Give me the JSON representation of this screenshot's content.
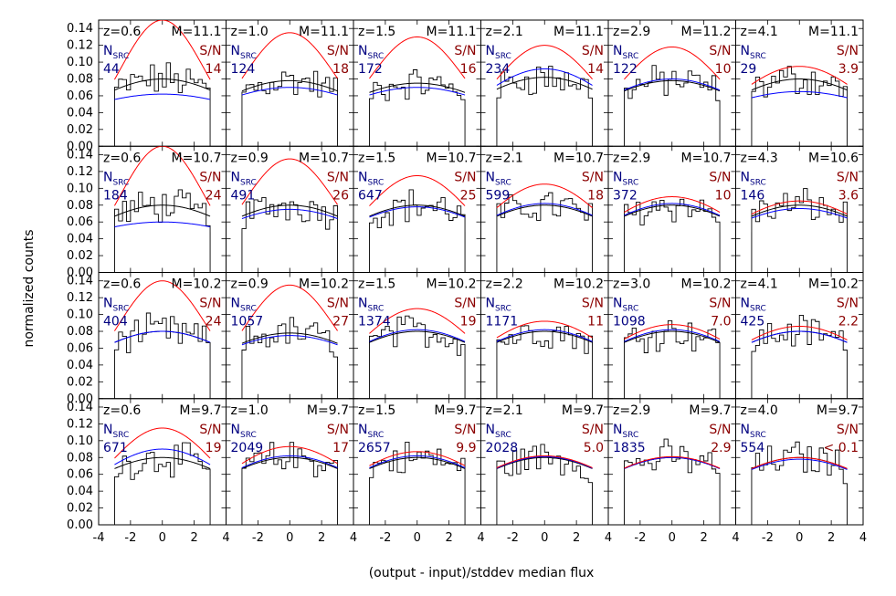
{
  "figure": {
    "xlabel": "(output - input)/stddev median flux",
    "ylabel": "normalized counts",
    "nsrc_label": "N",
    "nsrc_sub": "SRC",
    "sn_label": "S/N"
  },
  "chart_data": {
    "type": "histogram-grid",
    "rows": 4,
    "cols": 6,
    "xlim": [
      -4,
      4
    ],
    "ylim": [
      0,
      0.15
    ],
    "x_ticks": [
      -4,
      -2,
      0,
      2,
      4
    ],
    "x_tick_labels": [
      "-4",
      "-2",
      "0",
      "2",
      "4"
    ],
    "y_ticks": [
      0.0,
      0.02,
      0.04,
      0.06,
      0.08,
      0.1,
      0.12,
      0.14
    ],
    "y_tick_labels": [
      "0.00",
      "0.02",
      "0.04",
      "0.06",
      "0.08",
      "0.10",
      "0.12",
      "0.14"
    ],
    "series_colors": {
      "histogram": "#000000",
      "gaussian_fit": "#000000",
      "expected": "#ff0000",
      "blue_model": "#0000ff"
    },
    "panels": [
      {
        "z": "z=0.6",
        "M": "M=11.1",
        "nsrc": "44",
        "sn": "14",
        "red_peak": 0.15,
        "black_peak": 0.08,
        "blue_peak": 0.062
      },
      {
        "z": "z=1.0",
        "M": "M=11.1",
        "nsrc": "124",
        "sn": "18",
        "red_peak": 0.135,
        "black_peak": 0.078,
        "blue_peak": 0.07
      },
      {
        "z": "z=1.5",
        "M": "M=11.1",
        "nsrc": "172",
        "sn": "16",
        "red_peak": 0.13,
        "black_peak": 0.075,
        "blue_peak": 0.07
      },
      {
        "z": "z=2.1",
        "M": "M=11.1",
        "nsrc": "234",
        "sn": "14",
        "red_peak": 0.12,
        "black_peak": 0.082,
        "blue_peak": 0.092
      },
      {
        "z": "z=2.9",
        "M": "M=11.2",
        "nsrc": "122",
        "sn": "10",
        "red_peak": 0.118,
        "black_peak": 0.078,
        "blue_peak": 0.08
      },
      {
        "z": "z=4.1",
        "M": "M=11.1",
        "nsrc": "29",
        "sn": "3.9",
        "red_peak": 0.095,
        "black_peak": 0.08,
        "blue_peak": 0.065
      },
      {
        "z": "z=0.6",
        "M": "M=10.7",
        "nsrc": "184",
        "sn": "24",
        "red_peak": 0.15,
        "black_peak": 0.08,
        "blue_peak": 0.06
      },
      {
        "z": "z=0.9",
        "M": "M=10.7",
        "nsrc": "491",
        "sn": "26",
        "red_peak": 0.135,
        "black_peak": 0.08,
        "blue_peak": 0.075
      },
      {
        "z": "z=1.5",
        "M": "M=10.7",
        "nsrc": "647",
        "sn": "25",
        "red_peak": 0.115,
        "black_peak": 0.08,
        "blue_peak": 0.078
      },
      {
        "z": "z=2.1",
        "M": "M=10.7",
        "nsrc": "599",
        "sn": "18",
        "red_peak": 0.105,
        "black_peak": 0.08,
        "blue_peak": 0.082
      },
      {
        "z": "z=2.9",
        "M": "M=10.7",
        "nsrc": "372",
        "sn": "10",
        "red_peak": 0.09,
        "black_peak": 0.08,
        "blue_peak": 0.082
      },
      {
        "z": "z=4.3",
        "M": "M=10.6",
        "nsrc": "146",
        "sn": "3.6",
        "red_peak": 0.085,
        "black_peak": 0.08,
        "blue_peak": 0.076
      },
      {
        "z": "z=0.6",
        "M": "M=10.2",
        "nsrc": "404",
        "sn": "24",
        "red_peak": 0.14,
        "black_peak": 0.08,
        "blue_peak": 0.08
      },
      {
        "z": "z=0.9",
        "M": "M=10.2",
        "nsrc": "1057",
        "sn": "27",
        "red_peak": 0.135,
        "black_peak": 0.078,
        "blue_peak": 0.075
      },
      {
        "z": "z=1.5",
        "M": "M=10.2",
        "nsrc": "1374",
        "sn": "19",
        "red_peak": 0.107,
        "black_peak": 0.08,
        "blue_peak": 0.082
      },
      {
        "z": "z=2.2",
        "M": "M=10.2",
        "nsrc": "1171",
        "sn": "11",
        "red_peak": 0.092,
        "black_peak": 0.08,
        "blue_peak": 0.082
      },
      {
        "z": "z=3.0",
        "M": "M=10.2",
        "nsrc": "1098",
        "sn": "7.0",
        "red_peak": 0.088,
        "black_peak": 0.08,
        "blue_peak": 0.082
      },
      {
        "z": "z=4.1",
        "M": "M=10.2",
        "nsrc": "425",
        "sn": "2.2",
        "red_peak": 0.086,
        "black_peak": 0.08,
        "blue_peak": 0.08
      },
      {
        "z": "z=0.6",
        "M": "M=9.7",
        "nsrc": "671",
        "sn": "19",
        "red_peak": 0.115,
        "black_peak": 0.08,
        "blue_peak": 0.09
      },
      {
        "z": "z=1.0",
        "M": "M=9.7",
        "nsrc": "2049",
        "sn": "17",
        "red_peak": 0.093,
        "black_peak": 0.08,
        "blue_peak": 0.082
      },
      {
        "z": "z=1.5",
        "M": "M=9.7",
        "nsrc": "2657",
        "sn": "9.9",
        "red_peak": 0.087,
        "black_peak": 0.08,
        "blue_peak": 0.082
      },
      {
        "z": "z=2.1",
        "M": "M=9.7",
        "nsrc": "2028",
        "sn": "5.0",
        "red_peak": 0.082,
        "black_peak": 0.08,
        "blue_peak": 0.081
      },
      {
        "z": "z=2.9",
        "M": "M=9.7",
        "nsrc": "1835",
        "sn": "2.9",
        "red_peak": 0.081,
        "black_peak": 0.08,
        "blue_peak": 0.08
      },
      {
        "z": "z=4.0",
        "M": "M=9.7",
        "nsrc": "554",
        "sn": "< 0.1",
        "red_peak": 0.08,
        "black_peak": 0.08,
        "blue_peak": 0.078
      }
    ]
  }
}
